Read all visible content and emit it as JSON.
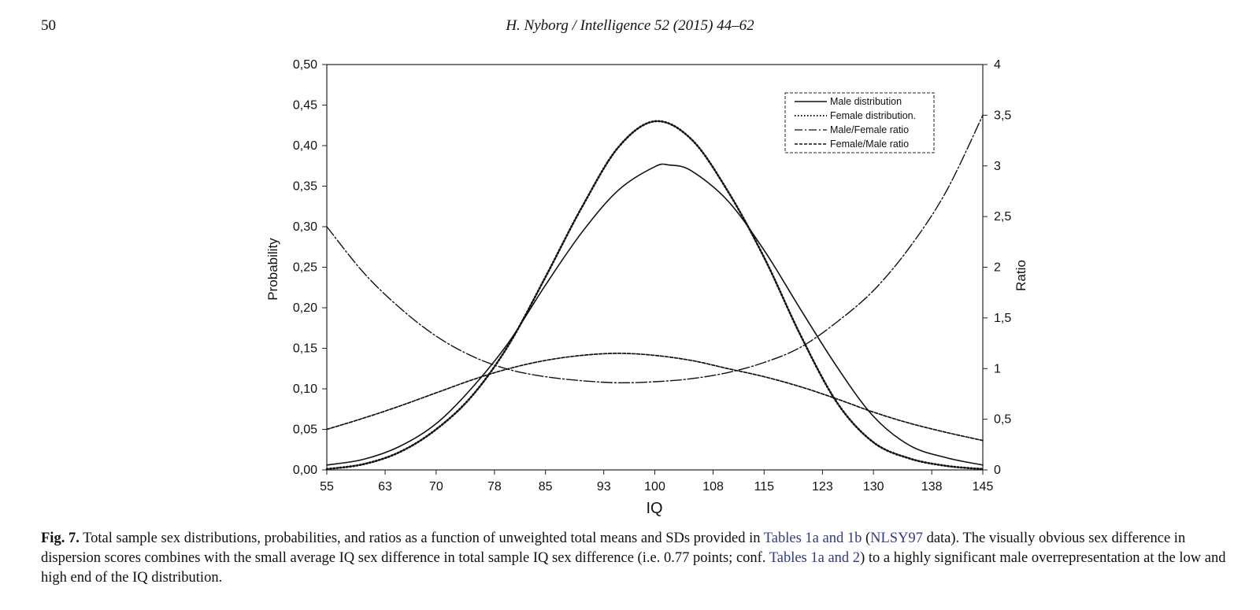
{
  "header": {
    "page_number": "50",
    "running_title": "H. Nyborg / Intelligence 52 (2015) 44–62"
  },
  "chart_data": {
    "type": "line",
    "xlabel": "IQ",
    "ylabel": "Probability",
    "y2label": "Ratio",
    "xlim": [
      55,
      145
    ],
    "ylim": [
      0,
      0.5
    ],
    "y2lim": [
      0,
      4
    ],
    "x_ticks": [
      "55",
      "63",
      "70",
      "78",
      "85",
      "93",
      "100",
      "108",
      "115",
      "123",
      "130",
      "138",
      "145"
    ],
    "y_ticks": [
      "0,00",
      "0,05",
      "0,10",
      "0,15",
      "0,20",
      "0,25",
      "0,30",
      "0,35",
      "0,40",
      "0,45",
      "0,50"
    ],
    "y2_ticks": [
      "0",
      "0,5",
      "1",
      "1,5",
      "2",
      "2,5",
      "3",
      "3,5",
      "4"
    ],
    "legend_position": "top-right",
    "series": [
      {
        "name": "Male distribution",
        "axis": "left",
        "style": "solid",
        "x": [
          55,
          60,
          65,
          70,
          75,
          80,
          85,
          90,
          95,
          100,
          102,
          105,
          110,
          115,
          120,
          125,
          130,
          135,
          140,
          145
        ],
        "y": [
          0.006,
          0.013,
          0.029,
          0.057,
          0.102,
          0.158,
          0.228,
          0.293,
          0.345,
          0.374,
          0.376,
          0.369,
          0.332,
          0.271,
          0.198,
          0.127,
          0.066,
          0.03,
          0.015,
          0.006
        ]
      },
      {
        "name": "Female distribution.",
        "axis": "left",
        "style": "dotted",
        "x": [
          55,
          60,
          65,
          70,
          75,
          80,
          85,
          90,
          95,
          100,
          105,
          110,
          115,
          120,
          125,
          130,
          135,
          140,
          145
        ],
        "y": [
          0.001,
          0.007,
          0.022,
          0.05,
          0.092,
          0.155,
          0.238,
          0.324,
          0.398,
          0.43,
          0.408,
          0.344,
          0.262,
          0.166,
          0.083,
          0.034,
          0.014,
          0.005,
          0.001
        ]
      },
      {
        "name": "Male/Female ratio",
        "axis": "right",
        "style": "dash-dot",
        "x": [
          55,
          60,
          65,
          70,
          75,
          80,
          85,
          90,
          95,
          100,
          105,
          110,
          115,
          120,
          125,
          130,
          135,
          140,
          145
        ],
        "y": [
          2.4,
          1.95,
          1.6,
          1.32,
          1.12,
          0.99,
          0.92,
          0.88,
          0.86,
          0.87,
          0.9,
          0.96,
          1.06,
          1.21,
          1.46,
          1.77,
          2.2,
          2.75,
          3.5
        ]
      },
      {
        "name": "Female/Male ratio",
        "axis": "right",
        "style": "short-dash",
        "x": [
          55,
          60,
          65,
          70,
          75,
          80,
          85,
          90,
          95,
          100,
          105,
          110,
          115,
          120,
          125,
          130,
          135,
          140,
          145
        ],
        "y": [
          0.4,
          0.51,
          0.63,
          0.76,
          0.89,
          1.0,
          1.08,
          1.13,
          1.15,
          1.13,
          1.08,
          1.0,
          0.92,
          0.82,
          0.7,
          0.57,
          0.46,
          0.37,
          0.29
        ]
      }
    ]
  },
  "caption": {
    "label": "Fig. 7.",
    "text_1": " Total sample sex distributions, probabilities, and ratios as a function of unweighted total means and SDs provided in ",
    "ref_1": "Tables 1a and 1b",
    "text_2": " (",
    "ref_2": "NLSY97",
    "text_3": " data). The visually obvious sex difference in dispersion scores combines with the small average IQ sex difference in total sample IQ sex difference (i.e. 0.77 points; conf. ",
    "ref_3": "Tables 1a and 2",
    "text_4": ") to a highly significant male overrepresentation at the low and high end of the IQ distribution."
  }
}
